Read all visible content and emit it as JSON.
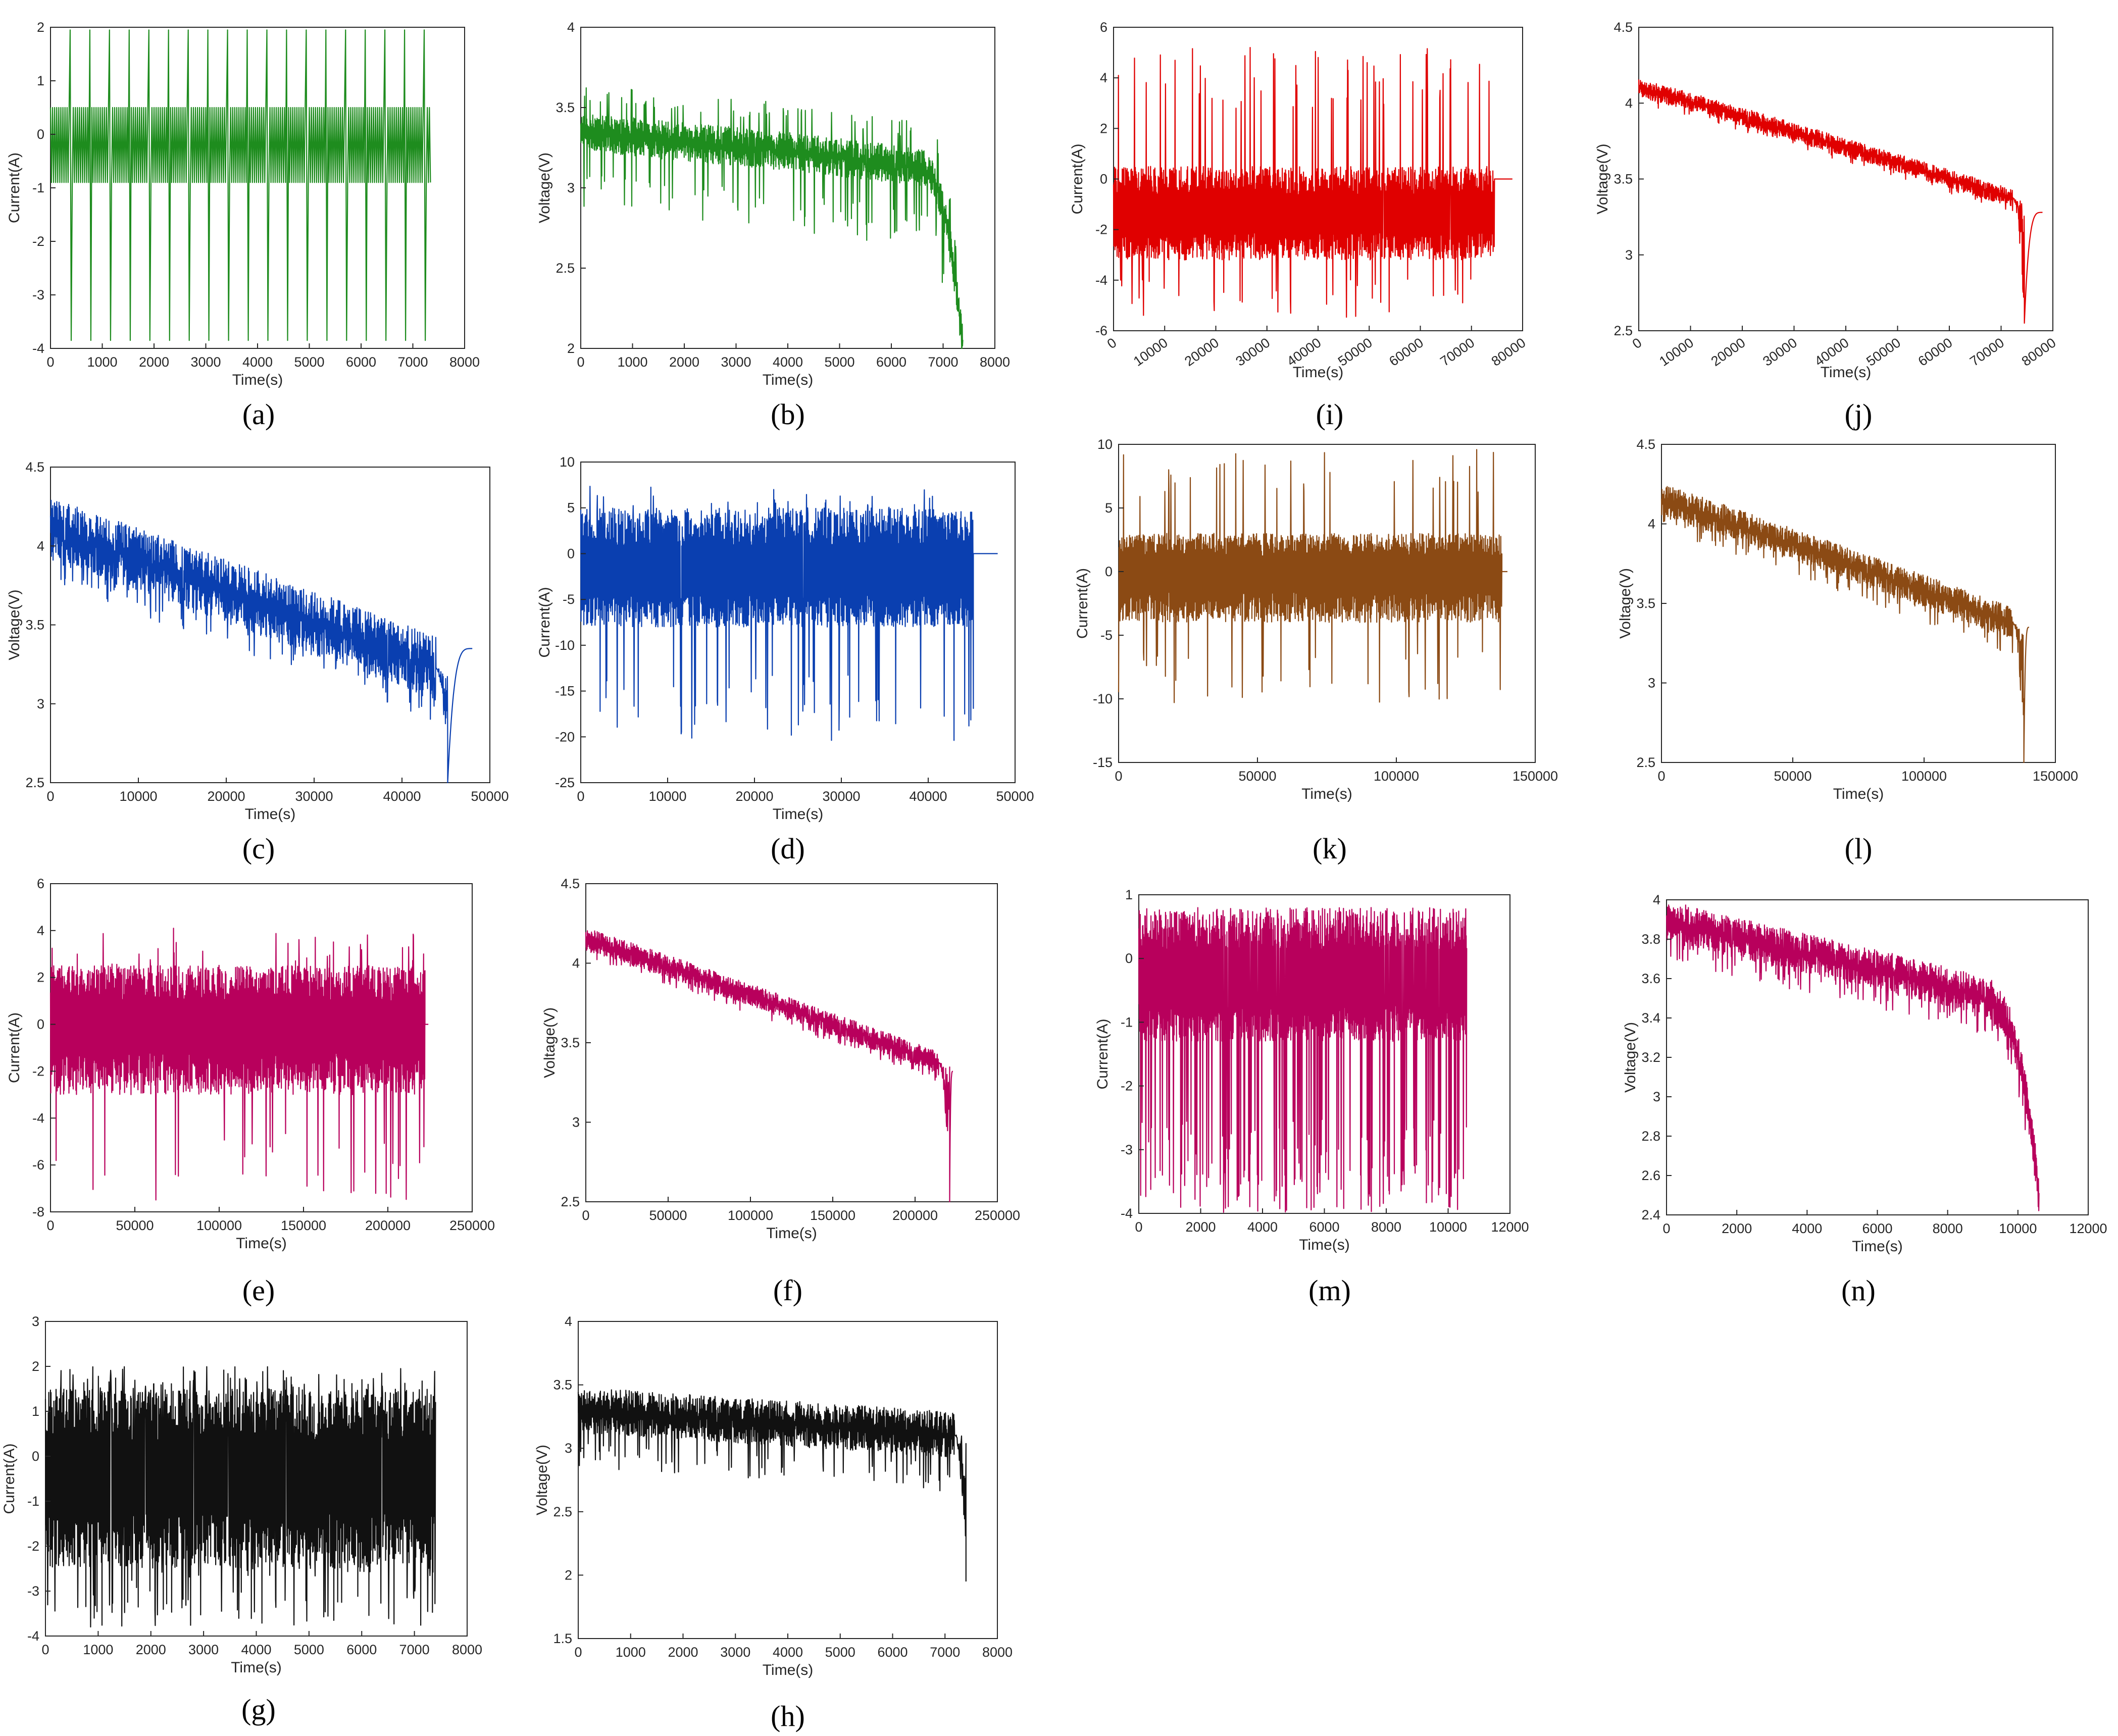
{
  "figure": {
    "colors": {
      "green": "#1e8c1e",
      "blue": "#0a3fb0",
      "magenta": "#b8005c",
      "black": "#111111",
      "red": "#e00000",
      "brown": "#8b4a14"
    }
  },
  "chart_data": [
    {
      "id": "a",
      "caption": "(a)",
      "type": "line",
      "xlabel": "Time(s)",
      "ylabel": "Current(A)",
      "xlim": [
        0,
        8000
      ],
      "ylim": [
        -4,
        2
      ],
      "xticks": [
        0,
        1000,
        2000,
        3000,
        4000,
        5000,
        6000,
        7000,
        8000
      ],
      "xtick_labels": [
        "0",
        "1000",
        "2000",
        "3000",
        "4000",
        "5000",
        "6000",
        "7000",
        "8000"
      ],
      "yticks": [
        -4,
        -3,
        -2,
        -1,
        0,
        1,
        2
      ],
      "ytick_labels": [
        "-4",
        "-3",
        "-2",
        "-1",
        "0",
        "1",
        "2"
      ],
      "x_rotated": false,
      "color": "green",
      "signal": {
        "kind": "current_periodic",
        "x_end": 7350,
        "base_hi": 0.5,
        "base_lo": -0.9,
        "spike_hi": 1.95,
        "spike_lo": -3.85,
        "period": 380,
        "flat_end": 0
      },
      "series": [
        {
          "name": "Current",
          "description": "periodic pulse profile between about -0.9 A and 0.5 A with spikes to 1.95 A and -3.85 A"
        }
      ]
    },
    {
      "id": "b",
      "caption": "(b)",
      "type": "line",
      "xlabel": "Time(s)",
      "ylabel": "Voltage(V)",
      "xlim": [
        0,
        8000
      ],
      "ylim": [
        2,
        4
      ],
      "xticks": [
        0,
        1000,
        2000,
        3000,
        4000,
        5000,
        6000,
        7000,
        8000
      ],
      "xtick_labels": [
        "0",
        "1000",
        "2000",
        "3000",
        "4000",
        "5000",
        "6000",
        "7000",
        "8000"
      ],
      "yticks": [
        2,
        2.5,
        3,
        3.5,
        4
      ],
      "ytick_labels": [
        "2",
        "2.5",
        "3",
        "3.5",
        "4"
      ],
      "x_rotated": false,
      "color": "green",
      "signal": {
        "kind": "voltage_pulse",
        "x_end": 7380,
        "v_start": 3.35,
        "v_mid": 3.2,
        "v_knee": 3.1,
        "v_end": 2.0,
        "band": 0.12,
        "spike_hi": 0.3,
        "spike_lo": 0.5,
        "period": 380,
        "knee_frac": 0.9,
        "recover": null
      },
      "series": [
        {
          "name": "Voltage",
          "description": "voltage declines from about 3.35 V to 3.1 V then drops to 2 V near 7380 s"
        }
      ]
    },
    {
      "id": "c",
      "caption": "(c)",
      "type": "line",
      "xlabel": "Time(s)",
      "ylabel": "Voltage(V)",
      "xlim": [
        0,
        50000
      ],
      "ylim": [
        2.5,
        4.5
      ],
      "xticks": [
        0,
        10000,
        20000,
        30000,
        40000,
        50000
      ],
      "xtick_labels": [
        "0",
        "10000",
        "20000",
        "30000",
        "40000",
        "50000"
      ],
      "yticks": [
        2.5,
        3,
        3.5,
        4,
        4.5
      ],
      "ytick_labels": [
        "2.5",
        "3",
        "3.5",
        "4",
        "4.5"
      ],
      "x_rotated": false,
      "color": "blue",
      "signal": {
        "kind": "voltage_noisy",
        "x_end": 45200,
        "v_start": 4.1,
        "v_end": 3.2,
        "band": 0.2,
        "spike_lo": 0.35,
        "drop_to": 2.5,
        "recover": {
          "until": 48000,
          "level": 3.35
        }
      },
      "series": [
        {
          "name": "Voltage",
          "description": "noisy decline from about 4.1 V to 3.2 V, drop to 2.5 V at 45200 s, recovery to 3.35 V"
        }
      ]
    },
    {
      "id": "d",
      "caption": "(d)",
      "type": "line",
      "xlabel": "Time(s)",
      "ylabel": "Current(A)",
      "xlim": [
        0,
        50000
      ],
      "ylim": [
        -25,
        10
      ],
      "xticks": [
        0,
        10000,
        20000,
        30000,
        40000,
        50000
      ],
      "xtick_labels": [
        "0",
        "10000",
        "20000",
        "30000",
        "40000",
        "50000"
      ],
      "yticks": [
        -25,
        -20,
        -15,
        -10,
        -5,
        0,
        5,
        10
      ],
      "ytick_labels": [
        "-25",
        "-20",
        "-15",
        "-10",
        "-5",
        "0",
        "5",
        "10"
      ],
      "x_rotated": false,
      "color": "blue",
      "signal": {
        "kind": "current_noisy",
        "x_end": 45200,
        "center": -2,
        "band_hi": 5,
        "band_lo": -8,
        "spike_hi": 7.5,
        "spike_lo": -20.5,
        "spike_rate": 0.07,
        "flat_end": 48000
      },
      "series": [
        {
          "name": "Current",
          "description": "dense current profile between about -8 A and 5 A, spikes to 7.5 A and -20.5 A"
        }
      ]
    },
    {
      "id": "e",
      "caption": "(e)",
      "type": "line",
      "xlabel": "Time(s)",
      "ylabel": "Current(A)",
      "xlim": [
        0,
        250000
      ],
      "ylim": [
        -8,
        6
      ],
      "xticks": [
        0,
        50000,
        100000,
        150000,
        200000,
        250000
      ],
      "xtick_labels": [
        "0",
        "50000",
        "100000",
        "150000",
        "200000",
        "250000"
      ],
      "yticks": [
        -8,
        -6,
        -4,
        -2,
        0,
        2,
        4,
        6
      ],
      "ytick_labels": [
        "-8",
        "-6",
        "-4",
        "-2",
        "0",
        "2",
        "4",
        "6"
      ],
      "x_rotated": false,
      "color": "magenta",
      "signal": {
        "kind": "current_noisy",
        "x_end": 222000,
        "center": 0,
        "band_hi": 2.5,
        "band_lo": -3,
        "spike_hi": 4.1,
        "spike_lo": -7.5,
        "spike_rate": 0.05,
        "flat_end": 224000
      },
      "series": [
        {
          "name": "Current",
          "description": "dense current profile between about -3 A and 2.5 A, spikes to 4.1 A and -7.5 A"
        }
      ]
    },
    {
      "id": "f",
      "caption": "(f)",
      "type": "line",
      "xlabel": "Time(s)",
      "ylabel": "Voltage(V)",
      "xlim": [
        0,
        250000
      ],
      "ylim": [
        2.5,
        4.5
      ],
      "xticks": [
        0,
        50000,
        100000,
        150000,
        200000,
        250000
      ],
      "xtick_labels": [
        "0",
        "50000",
        "100000",
        "150000",
        "200000",
        "250000"
      ],
      "yticks": [
        2.5,
        3,
        3.5,
        4,
        4.5
      ],
      "ytick_labels": [
        "2.5",
        "3",
        "3.5",
        "4",
        "4.5"
      ],
      "x_rotated": false,
      "color": "magenta",
      "signal": {
        "kind": "voltage_noisy",
        "x_end": 221000,
        "v_start": 4.15,
        "v_end": 3.35,
        "band": 0.07,
        "spike_lo": 0.12,
        "drop_to": 2.5,
        "recover": {
          "until": 223000,
          "level": 3.32
        }
      },
      "series": [
        {
          "name": "Voltage",
          "description": "voltage declines from about 4.15 V to 3.35 V, drop to 2.5 V at 221000 s"
        }
      ]
    },
    {
      "id": "g",
      "caption": "(g)",
      "type": "line",
      "xlabel": "Time(s)",
      "ylabel": "Current(A)",
      "xlim": [
        0,
        8000
      ],
      "ylim": [
        -4,
        3
      ],
      "xticks": [
        0,
        1000,
        2000,
        3000,
        4000,
        5000,
        6000,
        7000,
        8000
      ],
      "xtick_labels": [
        "0",
        "1000",
        "2000",
        "3000",
        "4000",
        "5000",
        "6000",
        "7000",
        "8000"
      ],
      "yticks": [
        -4,
        -3,
        -2,
        -1,
        0,
        1,
        2,
        3
      ],
      "ytick_labels": [
        "-4",
        "-3",
        "-2",
        "-1",
        "0",
        "1",
        "2",
        "3"
      ],
      "x_rotated": false,
      "color": "black",
      "signal": {
        "kind": "current_noisy",
        "x_end": 7400,
        "center": -0.4,
        "band_hi": 1.5,
        "band_lo": -2.5,
        "spike_hi": 2.0,
        "spike_lo": -3.8,
        "spike_rate": 0.12,
        "flat_end": 0
      },
      "series": [
        {
          "name": "Current",
          "description": "dense current profile between about -2.5 A and 1.5 A, spikes to 2 A and -3.8 A"
        }
      ]
    },
    {
      "id": "h",
      "caption": "(h)",
      "type": "line",
      "xlabel": "Time(s)",
      "ylabel": "Voltage(V)",
      "xlim": [
        0,
        8000
      ],
      "ylim": [
        1.5,
        4
      ],
      "xticks": [
        0,
        1000,
        2000,
        3000,
        4000,
        5000,
        6000,
        7000,
        8000
      ],
      "xtick_labels": [
        "0",
        "1000",
        "2000",
        "3000",
        "4000",
        "5000",
        "6000",
        "7000",
        "8000"
      ],
      "yticks": [
        1.5,
        2,
        2.5,
        3,
        3.5,
        4
      ],
      "ytick_labels": [
        "1.5",
        "2",
        "2.5",
        "3",
        "3.5",
        "4"
      ],
      "x_rotated": false,
      "color": "black",
      "signal": {
        "kind": "voltage_noisy",
        "x_end": 7400,
        "v_start": 3.3,
        "v_end": 3.1,
        "band": 0.18,
        "spike_lo": 0.45,
        "drop_to": 1.95,
        "recover": null
      },
      "series": [
        {
          "name": "Voltage",
          "description": "noisy voltage about 3.3 V to 3.1 V, drop to 1.95 V at 7400 s"
        }
      ]
    },
    {
      "id": "i",
      "caption": "(i)",
      "type": "line",
      "xlabel": "Time(s)",
      "ylabel": "Current(A)",
      "xlim": [
        0,
        80000
      ],
      "ylim": [
        -6,
        6
      ],
      "xticks": [
        0,
        10000,
        20000,
        30000,
        40000,
        50000,
        60000,
        70000,
        80000
      ],
      "xtick_labels": [
        "0",
        "10000",
        "20000",
        "30000",
        "40000",
        "50000",
        "60000",
        "70000",
        "80000"
      ],
      "yticks": [
        -6,
        -4,
        -2,
        0,
        2,
        4,
        6
      ],
      "ytick_labels": [
        "-6",
        "-4",
        "-2",
        "0",
        "2",
        "4",
        "6"
      ],
      "x_rotated": true,
      "color": "red",
      "signal": {
        "kind": "current_noisy",
        "x_end": 74500,
        "center": -1.4,
        "band_hi": 0.5,
        "band_lo": -3.2,
        "spike_hi": 5.5,
        "spike_lo": -5.5,
        "spike_rate": 0.06,
        "flat_end": 78000
      },
      "series": [
        {
          "name": "Current",
          "description": "current between about -3.2 A and 0.5 A with spikes to 5.5 A and -5.5 A, then 0 A"
        }
      ]
    },
    {
      "id": "j",
      "caption": "(j)",
      "type": "line",
      "xlabel": "Time(s)",
      "ylabel": "Voltage(V)",
      "xlim": [
        0,
        80000
      ],
      "ylim": [
        2.5,
        4.5
      ],
      "xticks": [
        0,
        10000,
        20000,
        30000,
        40000,
        50000,
        60000,
        70000,
        80000
      ],
      "xtick_labels": [
        "0",
        "10000",
        "20000",
        "30000",
        "40000",
        "50000",
        "60000",
        "70000",
        "80000"
      ],
      "yticks": [
        2.5,
        3,
        3.5,
        4,
        4.5
      ],
      "ytick_labels": [
        "2.5",
        "3",
        "3.5",
        "4",
        "4.5"
      ],
      "x_rotated": true,
      "color": "red",
      "signal": {
        "kind": "voltage_noisy",
        "x_end": 74500,
        "v_start": 4.1,
        "v_end": 3.35,
        "band": 0.06,
        "spike_lo": 0.1,
        "drop_to": 2.55,
        "recover": {
          "until": 78000,
          "level": 3.28
        }
      },
      "series": [
        {
          "name": "Voltage",
          "description": "voltage declines from about 4.1 V to 3.35 V, drop to 2.55 V at 74500 s, recovery to 3.28 V"
        }
      ]
    },
    {
      "id": "k",
      "caption": "(k)",
      "type": "line",
      "xlabel": "Time(s)",
      "ylabel": "Current(A)",
      "xlim": [
        0,
        150000
      ],
      "ylim": [
        -15,
        10
      ],
      "xticks": [
        0,
        50000,
        100000,
        150000
      ],
      "xtick_labels": [
        "0",
        "50000",
        "100000",
        "150000"
      ],
      "yticks": [
        -15,
        -10,
        -5,
        0,
        5,
        10
      ],
      "ytick_labels": [
        "-15",
        "-10",
        "-5",
        "0",
        "5",
        "10"
      ],
      "x_rotated": false,
      "color": "brown",
      "signal": {
        "kind": "current_noisy",
        "x_end": 138000,
        "center": 0,
        "band_hi": 3,
        "band_lo": -4,
        "spike_hi": 9.8,
        "spike_lo": -10.5,
        "spike_rate": 0.06,
        "flat_end": 140000
      },
      "series": [
        {
          "name": "Current",
          "description": "dense current between about -4 A and 3 A, spikes to 9.8 A and -10.5 A"
        }
      ]
    },
    {
      "id": "l",
      "caption": "(l)",
      "type": "line",
      "xlabel": "Time(s)",
      "ylabel": "Voltage(V)",
      "xlim": [
        0,
        150000
      ],
      "ylim": [
        2.5,
        4.5
      ],
      "xticks": [
        0,
        50000,
        100000,
        150000
      ],
      "xtick_labels": [
        "0",
        "50000",
        "100000",
        "150000"
      ],
      "yticks": [
        2.5,
        3,
        3.5,
        4,
        4.5
      ],
      "ytick_labels": [
        "2.5",
        "3",
        "3.5",
        "4",
        "4.5"
      ],
      "x_rotated": false,
      "color": "brown",
      "signal": {
        "kind": "voltage_noisy",
        "x_end": 138000,
        "v_start": 4.15,
        "v_end": 3.35,
        "band": 0.1,
        "spike_lo": 0.2,
        "drop_to": 2.5,
        "recover": {
          "until": 140000,
          "level": 3.35
        }
      },
      "series": [
        {
          "name": "Voltage",
          "description": "voltage declines from about 4.15 V to 3.35 V, drop to 2.5 V at 138000 s"
        }
      ]
    },
    {
      "id": "m",
      "caption": "(m)",
      "type": "line",
      "xlabel": "Time(s)",
      "ylabel": "Current(A)",
      "xlim": [
        0,
        12000
      ],
      "ylim": [
        -4,
        1
      ],
      "xticks": [
        0,
        2000,
        4000,
        6000,
        8000,
        10000,
        12000
      ],
      "xtick_labels": [
        "0",
        "2000",
        "4000",
        "6000",
        "8000",
        "10000",
        "12000"
      ],
      "yticks": [
        -4,
        -3,
        -2,
        -1,
        0,
        1
      ],
      "ytick_labels": [
        "-4",
        "-3",
        "-2",
        "-1",
        "0",
        "1"
      ],
      "x_rotated": false,
      "color": "magenta",
      "signal": {
        "kind": "current_dense",
        "x_end": 10600,
        "center": -0.3,
        "band_hi": 0.8,
        "band_lo": -1.3,
        "spike_lo": -4.0,
        "spike_rate": 0.1,
        "flat_end": 0
      },
      "series": [
        {
          "name": "Current",
          "description": "dense current between about -1.3 A and 0.8 A with spikes to -4 A"
        }
      ]
    },
    {
      "id": "n",
      "caption": "(n)",
      "type": "line",
      "xlabel": "Time(s)",
      "ylabel": "Voltage(V)",
      "xlim": [
        0,
        12000
      ],
      "ylim": [
        2.4,
        4
      ],
      "xticks": [
        0,
        2000,
        4000,
        6000,
        8000,
        10000,
        12000
      ],
      "xtick_labels": [
        "0",
        "2000",
        "4000",
        "6000",
        "8000",
        "10000",
        "12000"
      ],
      "yticks": [
        2.4,
        2.6,
        2.8,
        3,
        3.2,
        3.4,
        3.6,
        3.8,
        4
      ],
      "ytick_labels": [
        "2.4",
        "2.6",
        "2.8",
        "3",
        "3.2",
        "3.4",
        "3.6",
        "3.8",
        "4"
      ],
      "x_rotated": false,
      "color": "magenta",
      "signal": {
        "kind": "voltage_curve",
        "x_end": 10600,
        "v_start": 3.9,
        "v_mid": 3.6,
        "v_knee": 3.45,
        "v_end": 2.5,
        "band": 0.1,
        "spike_lo": 0.2,
        "knee_frac": 0.88,
        "recover": null
      },
      "series": [
        {
          "name": "Voltage",
          "description": "voltage falls from about 3.9 V to 3.6 V, plateau, then drops to 2.5 V near 10600 s"
        }
      ]
    }
  ]
}
